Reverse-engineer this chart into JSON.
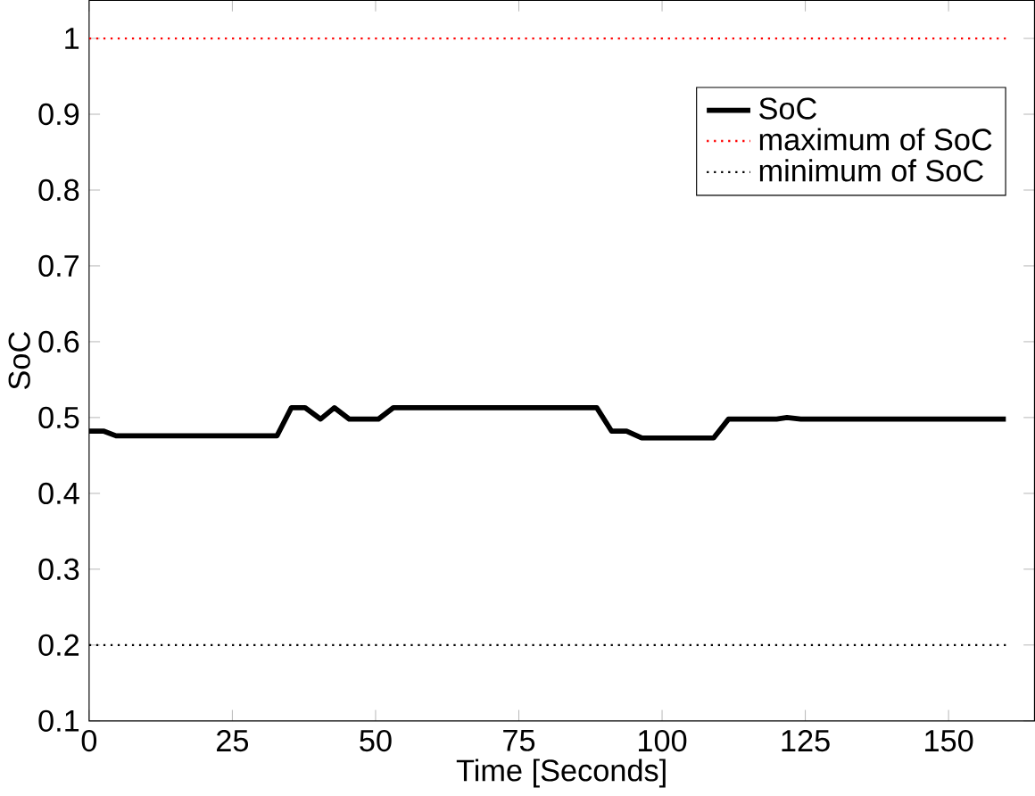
{
  "chart_data": {
    "type": "line",
    "xlabel": "Time [Seconds]",
    "ylabel": "SoC",
    "xlim": [
      0,
      165
    ],
    "ylim": [
      0.1,
      1.05
    ],
    "xticks": [
      0,
      25,
      50,
      75,
      100,
      125,
      150
    ],
    "yticks": [
      0.1,
      0.2,
      0.3,
      0.4,
      0.5,
      0.6,
      0.7,
      0.8,
      0.9,
      1
    ],
    "legend": "top right",
    "grid": false,
    "series": [
      {
        "name": "SoC",
        "color": "#000000",
        "line_style": "solid",
        "x": [
          0,
          2.6,
          4.7,
          32.8,
          35.3,
          37.7,
          40.4,
          42.8,
          45.4,
          50.5,
          53.1,
          88.6,
          91.2,
          93.8,
          96.5,
          109,
          111.6,
          120,
          121.8,
          124.2,
          160
        ],
        "values": [
          0.482,
          0.482,
          0.476,
          0.476,
          0.513,
          0.513,
          0.498,
          0.513,
          0.498,
          0.498,
          0.513,
          0.513,
          0.482,
          0.482,
          0.473,
          0.473,
          0.498,
          0.498,
          0.5,
          0.498,
          0.498
        ]
      },
      {
        "name": "maximum of SoC",
        "color": "#ff0000",
        "line_style": "dotted",
        "x": [
          0,
          160
        ],
        "values": [
          1,
          1
        ]
      },
      {
        "name": "minimum of SoC",
        "color": "#000000",
        "line_style": "dotted",
        "x": [
          0,
          160
        ],
        "values": [
          0.2,
          0.2
        ]
      }
    ]
  }
}
